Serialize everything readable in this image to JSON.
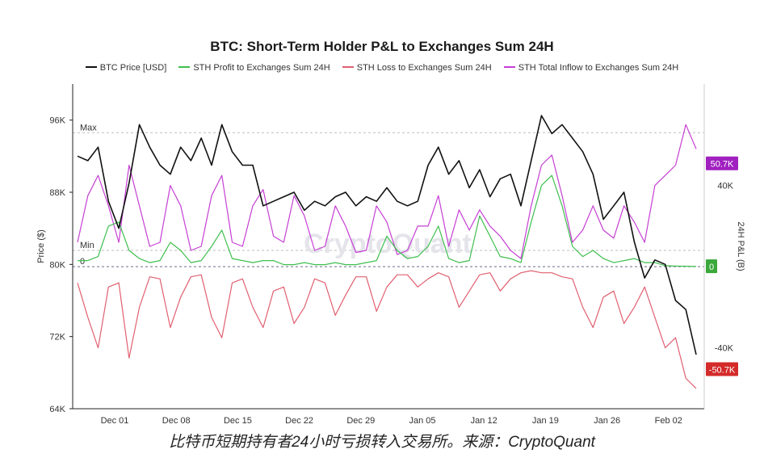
{
  "chart_data": {
    "type": "line",
    "title": "BTC: Short-Term Holder P&L to Exchanges Sum 24H",
    "ylabel_left": "Price ($)",
    "ylabel_right": "24H P&L (B)",
    "watermark": "CryptoQuant",
    "x_ticks": [
      "Dec 01",
      "Dec 08",
      "Dec 15",
      "Dec 22",
      "Dec 29",
      "Jan 05",
      "Jan 12",
      "Jan 19",
      "Jan 26",
      "Feb 02"
    ],
    "left_axis": {
      "ticks": [
        "96K",
        "88K",
        "80K",
        "72K",
        "64K"
      ],
      "ylim": [
        64000,
        100000
      ]
    },
    "right_axis": {
      "ticks": [
        "40K",
        "0",
        "-40K"
      ],
      "ylim": [
        -70000,
        90000
      ]
    },
    "ref_lines": {
      "max_label": "Max",
      "min_label": "Min",
      "zero_label": "0"
    },
    "badges": [
      {
        "text": "50.7K",
        "color": "#a020c0"
      },
      {
        "text": "0",
        "color": "#3aa83a"
      },
      {
        "text": "-50.7K",
        "color": "#d42a2a"
      }
    ],
    "series": [
      {
        "name": "BTC Price [USD]",
        "color": "#111111",
        "axis": "left",
        "values": [
          92000,
          91500,
          93000,
          87000,
          84000,
          89000,
          95500,
          93000,
          91000,
          90000,
          93000,
          91500,
          94000,
          91000,
          95500,
          92500,
          91000,
          91000,
          86500,
          87000,
          87500,
          88000,
          86000,
          87000,
          86500,
          87500,
          88000,
          86500,
          87500,
          87000,
          88500,
          87000,
          86500,
          87000,
          91000,
          93000,
          90000,
          91500,
          88500,
          90500,
          87500,
          89500,
          90000,
          86500,
          91500,
          96500,
          94500,
          95500,
          94000,
          92500,
          90000,
          85000,
          86500,
          88000,
          82500,
          78500,
          80500,
          80000,
          76000,
          75000,
          70000
        ]
      },
      {
        "name": "STH Profit to Exchanges Sum 24H",
        "color": "#3fbf4f",
        "axis": "right",
        "values": [
          3000,
          3000,
          5000,
          20000,
          22000,
          8000,
          4000,
          2000,
          3000,
          12000,
          8000,
          2000,
          3000,
          10000,
          18000,
          4000,
          3000,
          2000,
          3000,
          3000,
          1000,
          1000,
          2000,
          1000,
          1000,
          2000,
          1000,
          1000,
          2000,
          3000,
          15000,
          8000,
          4000,
          5000,
          10000,
          20000,
          4000,
          2000,
          3000,
          25000,
          15000,
          5000,
          4000,
          2000,
          22000,
          40000,
          45000,
          30000,
          10000,
          5000,
          8000,
          4000,
          2000,
          3000,
          4000,
          2000,
          2000,
          500,
          300,
          200,
          100
        ]
      },
      {
        "name": "STH Loss to Exchanges Sum 24H",
        "color": "#e06070",
        "axis": "right",
        "values": [
          -8000,
          -25000,
          -40000,
          -10000,
          -8000,
          -45000,
          -20000,
          -5000,
          -6000,
          -30000,
          -15000,
          -5000,
          -4000,
          -25000,
          -35000,
          -8000,
          -6000,
          -20000,
          -30000,
          -12000,
          -10000,
          -28000,
          -20000,
          -6000,
          -8000,
          -24000,
          -14000,
          -5000,
          -5000,
          -22000,
          -10000,
          -4000,
          -4000,
          -10000,
          -6000,
          -3000,
          -5000,
          -20000,
          -12000,
          -4000,
          -3000,
          -12000,
          -6000,
          -3000,
          -2000,
          -3000,
          -3000,
          -5000,
          -6000,
          -20000,
          -30000,
          -15000,
          -12000,
          -28000,
          -20000,
          -10000,
          -25000,
          -40000,
          -35000,
          -55000,
          -60000
        ]
      },
      {
        "name": "STH Total Inflow to Exchanges Sum 24H",
        "color": "#c63fd4",
        "axis": "right",
        "values": [
          12000,
          35000,
          45000,
          30000,
          12000,
          50000,
          30000,
          10000,
          12000,
          40000,
          30000,
          8000,
          10000,
          35000,
          45000,
          12000,
          10000,
          30000,
          38000,
          15000,
          12000,
          35000,
          25000,
          8000,
          10000,
          30000,
          20000,
          7000,
          8000,
          30000,
          22000,
          6000,
          8000,
          20000,
          20000,
          35000,
          10000,
          28000,
          18000,
          28000,
          20000,
          15000,
          8000,
          4000,
          30000,
          50000,
          55000,
          35000,
          12000,
          18000,
          30000,
          18000,
          14000,
          30000,
          22000,
          12000,
          40000,
          45000,
          50000,
          70000,
          58000
        ]
      }
    ]
  },
  "caption": "比特币短期持有者24小时亏损转入交易所。来源：CryptoQuant"
}
